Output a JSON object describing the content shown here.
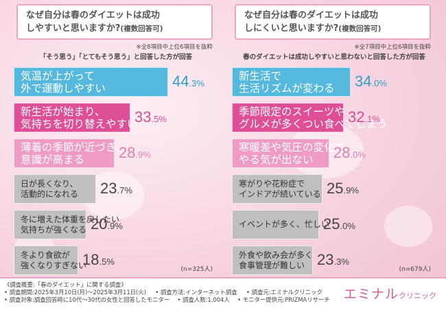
{
  "panels": [
    {
      "title_line1": "なぜ自分は春のダイエットは成功",
      "title_line2": "しやすいと思いますか?",
      "title_note": "(複数回答可)",
      "note": "※全8項目中上位6項目を抜粋",
      "condition": "「そう思う」「とてもそう思う」と回答した方が回答",
      "n": "(n=325人)",
      "bars": [
        {
          "line1": "気温が上がって",
          "line2": "外で運動しやすい",
          "int": "44",
          "dec": ".3%"
        },
        {
          "line1": "新生活が始まり、",
          "line2": "気持ちを切り替えやすい",
          "int": "33",
          "dec": ".5%"
        },
        {
          "line1": "薄着の季節が近づき、",
          "line2": "意識が高まる",
          "int": "28",
          "dec": ".9%"
        },
        {
          "line1": "日が長くなり、",
          "line2": "活動的になれる",
          "int": "23",
          "dec": ".7%"
        },
        {
          "line1": "冬に増えた体重を戻したい",
          "line2": "気持ちが強くなる",
          "int": "20",
          "dec": ".9%"
        },
        {
          "line1": "冬より食欲が",
          "line2": "強くなりすぎない",
          "int": "18",
          "dec": ".5%"
        }
      ]
    },
    {
      "title_line1": "なぜ自分は春のダイエットは成功",
      "title_line2": "しにくいと思いますか?",
      "title_note": "(複数回答可)",
      "note": "※全7項目中上位6項目を抜粋",
      "condition": "春のダイエットは成功しやすいと思わないと回答した方が回答",
      "n": "(n=679人)",
      "bars": [
        {
          "line1": "新生活で",
          "line2": "生活リズムが変わる",
          "int": "34",
          "dec": ".0%"
        },
        {
          "line1": "季節限定のスイーツや",
          "line2": "グルメが多くつい食べてしまう",
          "int": "32",
          "dec": ".1%"
        },
        {
          "line1": "寒暖差や気圧の変化で",
          "line2": "やる気が出ない",
          "int": "28",
          "dec": ".0%"
        },
        {
          "line1": "寒がりや花粉症で",
          "line2": "インドアが続いている",
          "int": "25",
          "dec": ".9%"
        },
        {
          "line1": "イベントが多く、忙しい",
          "line2": "",
          "int": "25",
          "dec": ".0%"
        },
        {
          "line1": "外食や飲み会が多く",
          "line2": "食事管理が難しい",
          "int": "23",
          "dec": ".3%"
        }
      ]
    }
  ],
  "chart_data": [
    {
      "type": "bar",
      "title": "なぜ自分は春のダイエットは成功しやすいと思いますか?(複数回答可)",
      "categories": [
        "気温が上がって外で運動しやすい",
        "新生活が始まり、気持ちを切り替えやすい",
        "薄着の季節が近づき、意識が高まる",
        "日が長くなり、活動的になれる",
        "冬に増えた体重を戻したい気持ちが強くなる",
        "冬より食欲が強くなりすぎない"
      ],
      "values": [
        44.3,
        33.5,
        28.9,
        23.7,
        20.9,
        18.5
      ],
      "unit": "%",
      "colors": [
        "#55b8dd",
        "#df4f97",
        "#ef9cc5",
        "#bfbfbf",
        "#bfbfbf",
        "#bfbfbf"
      ],
      "n": "n=325人"
    },
    {
      "type": "bar",
      "title": "なぜ自分は春のダイエットは成功しにくいと思いますか?(複数回答可)",
      "categories": [
        "新生活で生活リズムが変わる",
        "季節限定のスイーツやグルメが多くつい食べてしまう",
        "寒暖差や気圧の変化でやる気が出ない",
        "寒がりや花粉症でインドアが続いている",
        "イベントが多く、忙しい",
        "外食や飲み会が多く食事管理が難しい"
      ],
      "values": [
        34.0,
        32.1,
        28.0,
        25.9,
        25.0,
        23.3
      ],
      "unit": "%",
      "colors": [
        "#55b8dd",
        "#df4f97",
        "#ef9cc5",
        "#bfbfbf",
        "#bfbfbf",
        "#bfbfbf"
      ],
      "n": "n=679人"
    }
  ],
  "footer": {
    "overview": "《調査概要:「春のダイエット」に関する調査》",
    "period": "• 調査期間:2025年3月10日(月)〜2025年3月11日(火)",
    "method": "• 調査方法:インターネット調査",
    "by": "• 調査元:エミナルクリニック",
    "target": "• 調査対象:調査回答時に10代〜30代の女性と回答したモニター",
    "count": "• 調査人数:1,004人",
    "provider": "• モニター提供元:PRIZMAリサーチ",
    "logo_main": "エミナル",
    "logo_sub": "クリニック"
  }
}
